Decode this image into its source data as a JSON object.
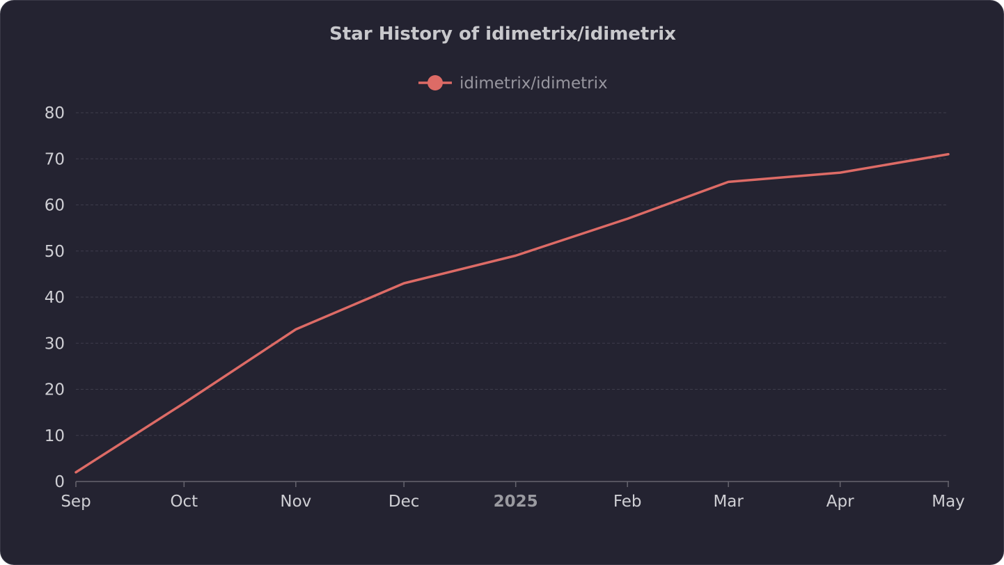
{
  "colors": {
    "background": "#242331",
    "series": "#dd6b66",
    "grid": "#3e3d4c",
    "axis": "#66656f",
    "text": "#cfcfd4"
  },
  "chart_data": {
    "type": "line",
    "title": "Star History of idimetrix/idimetrix",
    "xlabel": "",
    "ylabel": "",
    "x_ticks": [
      {
        "label": "Sep",
        "date": "2024-09-01",
        "bold": false
      },
      {
        "label": "Oct",
        "date": "2024-10-01",
        "bold": false
      },
      {
        "label": "Nov",
        "date": "2024-11-01",
        "bold": false
      },
      {
        "label": "Dec",
        "date": "2024-12-01",
        "bold": false
      },
      {
        "label": "2025",
        "date": "2025-01-01",
        "bold": true
      },
      {
        "label": "Feb",
        "date": "2025-02-01",
        "bold": false
      },
      {
        "label": "Mar",
        "date": "2025-03-01",
        "bold": false
      },
      {
        "label": "Apr",
        "date": "2025-04-01",
        "bold": false
      },
      {
        "label": "May",
        "date": "2025-05-01",
        "bold": false
      }
    ],
    "y_ticks": [
      0,
      10,
      20,
      30,
      40,
      50,
      60,
      70,
      80
    ],
    "xlim": [
      "2024-09-01",
      "2025-05-01"
    ],
    "ylim": [
      0,
      80
    ],
    "grid": true,
    "legend_position": "top-center",
    "series": [
      {
        "name": "idimetrix/idimetrix",
        "points": [
          {
            "x": "2024-09-01",
            "y": 2
          },
          {
            "x": "2024-10-01",
            "y": 17
          },
          {
            "x": "2024-11-01",
            "y": 33
          },
          {
            "x": "2024-12-01",
            "y": 43
          },
          {
            "x": "2025-01-01",
            "y": 49
          },
          {
            "x": "2025-02-01",
            "y": 57
          },
          {
            "x": "2025-03-01",
            "y": 65
          },
          {
            "x": "2025-04-01",
            "y": 67
          },
          {
            "x": "2025-05-01",
            "y": 71
          }
        ]
      }
    ]
  }
}
